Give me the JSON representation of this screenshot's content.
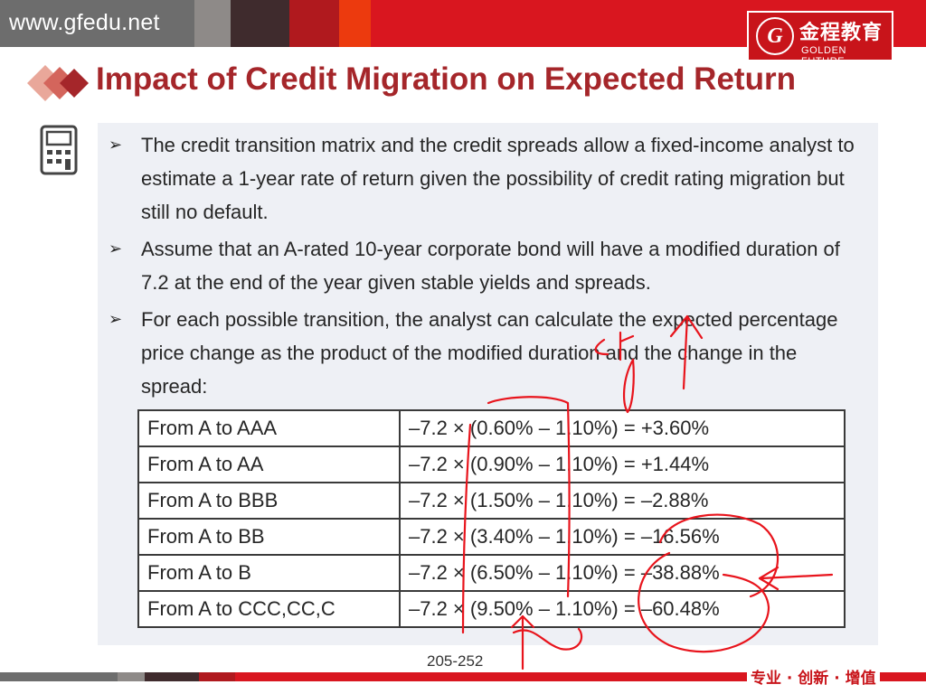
{
  "header": {
    "site_url": "www.gfedu.net",
    "logo_cn": "金程教育",
    "logo_en": "GOLDEN FUTURE",
    "logo_mark": "G",
    "bar_colors": [
      "#6d6d6d",
      "#8e8a88",
      "#3f2b2d",
      "#b0191e",
      "#ec3a0e",
      "#d9161f"
    ]
  },
  "slide": {
    "title": "Impact of Credit Migration on Expected Return",
    "title_color": "#a5262a",
    "bullets": [
      "The credit transition matrix and the credit spreads allow a fixed-income analyst to estimate a 1-year rate of return given the possibility of credit rating migration but still no default.",
      "Assume that an A-rated 10-year corporate bond will have a modified duration of 7.2 at the end of the year given stable yields and spreads.",
      "For each possible transition, the analyst can calculate the expected percentage price change as the product of the modified duration and the change in the spread:"
    ],
    "bullet_marker": "➢",
    "table": [
      [
        "From A to AAA",
        "–7.2 × (0.60% – 1.10%) = +3.60%"
      ],
      [
        "From A to AA",
        "–7.2 × (0.90% – 1.10%) = +1.44%"
      ],
      [
        "From A to BBB",
        "–7.2 × (1.50% – 1.10%) = –2.88%"
      ],
      [
        "From A to BB",
        "–7.2 × (3.40% – 1.10%) = –16.56%"
      ],
      [
        "From A to B",
        "–7.2 × (6.50% – 1.10%) = –38.88%"
      ],
      [
        "From A to CCC,CC,C",
        "–7.2 × (9.50% – 1.10%) = –60.48%"
      ]
    ],
    "page_number": "205-252"
  },
  "footer": {
    "slogan": "专业 · 创新 · 增值",
    "accent": "#c8141a"
  },
  "icons": [
    "diamond-bullet-icon",
    "calculator-icon",
    "arrow-bullet-icon"
  ]
}
